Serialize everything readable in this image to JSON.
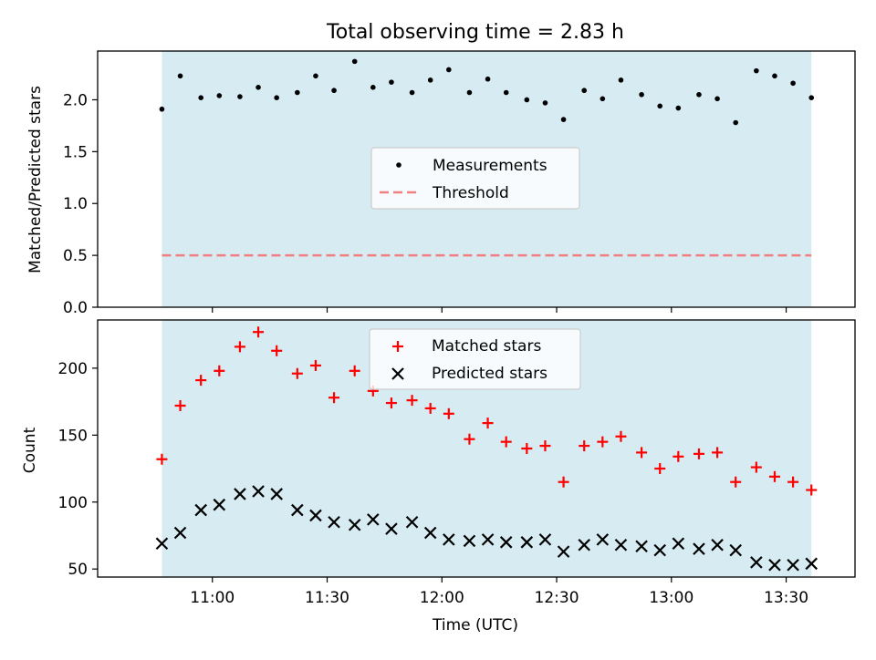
{
  "title": "Total observing time = 2.83 h",
  "colors": {
    "observing_band": "#add8e6",
    "measurement": "#000000",
    "threshold": "#f08080",
    "matched": "#ff0000",
    "predicted": "#000000",
    "axes": "#000000"
  },
  "chart_data": [
    {
      "type": "scatter",
      "panel": "top",
      "ylabel": "Matched/Predicted stars",
      "xlim": [
        10.5,
        13.8
      ],
      "ylim": [
        0.0,
        2.47
      ],
      "yticks": [
        0.0,
        0.5,
        1.0,
        1.5,
        2.0
      ],
      "ytick_labels": [
        "0.0",
        "0.5",
        "1.0",
        "1.5",
        "2.0"
      ],
      "observing_window": [
        10.78,
        13.61
      ],
      "threshold": 0.5,
      "legend": {
        "placement": "center",
        "entries": [
          "Measurements",
          "Threshold"
        ]
      },
      "series": [
        {
          "name": "Measurements",
          "x": [
            10.78,
            10.86,
            10.95,
            11.03,
            11.12,
            11.2,
            11.28,
            11.37,
            11.45,
            11.53,
            11.62,
            11.7,
            11.78,
            11.87,
            11.95,
            12.03,
            12.12,
            12.2,
            12.28,
            12.37,
            12.45,
            12.53,
            12.62,
            12.7,
            12.78,
            12.87,
            12.95,
            13.03,
            13.12,
            13.2,
            13.28,
            13.37,
            13.45,
            13.53,
            13.61
          ],
          "y": [
            1.91,
            2.23,
            2.02,
            2.04,
            2.03,
            2.12,
            2.02,
            2.07,
            2.23,
            2.09,
            2.37,
            2.12,
            2.17,
            2.07,
            2.19,
            2.29,
            2.07,
            2.2,
            2.07,
            2.0,
            1.97,
            1.81,
            2.09,
            2.01,
            2.19,
            2.05,
            1.94,
            1.92,
            2.05,
            2.01,
            1.78,
            2.28,
            2.23,
            2.16,
            2.02
          ]
        }
      ]
    },
    {
      "type": "scatter",
      "panel": "bottom",
      "xlabel": "Time (UTC)",
      "ylabel": "Count",
      "xlim": [
        10.5,
        13.8
      ],
      "ylim": [
        44,
        236
      ],
      "yticks": [
        50,
        100,
        150,
        200
      ],
      "ytick_labels": [
        "50",
        "100",
        "150",
        "200"
      ],
      "xticks": [
        11.0,
        11.5,
        12.0,
        12.5,
        13.0,
        13.5
      ],
      "xtick_labels": [
        "11:00",
        "11:30",
        "12:00",
        "12:30",
        "13:00",
        "13:30"
      ],
      "observing_window": [
        10.78,
        13.61
      ],
      "legend": {
        "placement": "upper-center",
        "entries": [
          "Matched stars",
          "Predicted stars"
        ]
      },
      "x": [
        10.78,
        10.86,
        10.95,
        11.03,
        11.12,
        11.2,
        11.28,
        11.37,
        11.45,
        11.53,
        11.62,
        11.7,
        11.78,
        11.87,
        11.95,
        12.03,
        12.12,
        12.2,
        12.28,
        12.37,
        12.45,
        12.53,
        12.62,
        12.7,
        12.78,
        12.87,
        12.95,
        13.03,
        13.12,
        13.2,
        13.28,
        13.37,
        13.45,
        13.53,
        13.61
      ],
      "series": [
        {
          "name": "Matched stars",
          "marker": "+",
          "values": [
            132,
            172,
            191,
            198,
            216,
            227,
            213,
            196,
            202,
            178,
            198,
            183,
            174,
            176,
            170,
            166,
            147,
            159,
            145,
            140,
            142,
            115,
            142,
            145,
            149,
            137,
            125,
            134,
            136,
            137,
            115,
            126,
            119,
            115,
            109
          ]
        },
        {
          "name": "Predicted stars",
          "marker": "x",
          "values": [
            69,
            77,
            94,
            98,
            106,
            108,
            106,
            94,
            90,
            85,
            83,
            87,
            80,
            85,
            77,
            72,
            71,
            72,
            70,
            70,
            72,
            63,
            68,
            72,
            68,
            67,
            64,
            69,
            65,
            68,
            64,
            55,
            53,
            53,
            54
          ]
        }
      ]
    }
  ]
}
